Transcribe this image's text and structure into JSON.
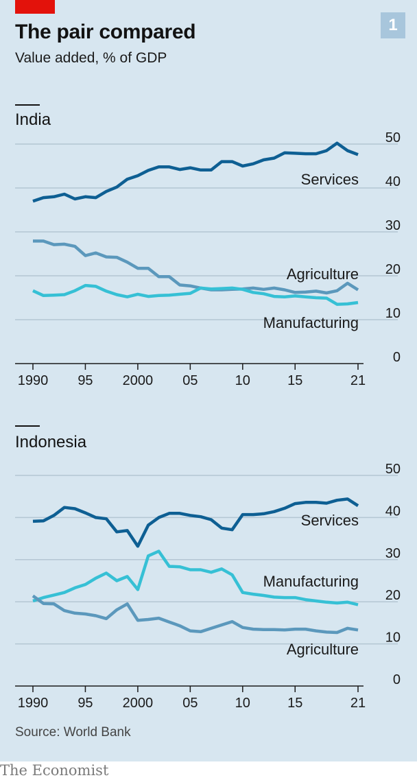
{
  "header": {
    "title": "The pair compared",
    "subtitle": "Value added, % of GDP",
    "badge": "1"
  },
  "footer": {
    "source": "Source: World Bank",
    "brand": "The Economist"
  },
  "colors": {
    "services": "#0e5f93",
    "agriculture": "#5b98bc",
    "manufacturing": "#36c0d5",
    "background": "#d7e6f0",
    "accent": "#e3120b"
  },
  "chart_data": [
    {
      "type": "line",
      "title": "India",
      "x": [
        1990,
        1991,
        1992,
        1993,
        1994,
        1995,
        1996,
        1997,
        1998,
        1999,
        2000,
        2001,
        2002,
        2003,
        2004,
        2005,
        2006,
        2007,
        2008,
        2009,
        2010,
        2011,
        2012,
        2013,
        2014,
        2015,
        2016,
        2017,
        2018,
        2019,
        2020,
        2021
      ],
      "xtick_labels": [
        "1990",
        "95",
        "2000",
        "05",
        "10",
        "15",
        "21"
      ],
      "xtick_values": [
        1990,
        1995,
        2000,
        2005,
        2010,
        2015,
        2021
      ],
      "ytick_values": [
        0,
        10,
        20,
        30,
        40,
        50
      ],
      "ylim": [
        0,
        50
      ],
      "series": [
        {
          "name": "Services",
          "key": "services",
          "values": [
            37,
            37.8,
            38,
            38.6,
            37.5,
            38,
            37.8,
            39.2,
            40.2,
            42,
            42.8,
            44,
            44.8,
            44.8,
            44.2,
            44.6,
            44.1,
            44.1,
            46,
            46,
            45,
            45.5,
            46.4,
            46.8,
            48,
            47.9,
            47.8,
            47.8,
            48.5,
            50.2,
            48.5,
            47.6
          ]
        },
        {
          "name": "Agriculture",
          "key": "agriculture",
          "values": [
            27.9,
            27.9,
            27.1,
            27.2,
            26.7,
            24.6,
            25.2,
            24.3,
            24.2,
            23.1,
            21.7,
            21.7,
            19.8,
            19.8,
            17.9,
            17.7,
            17.2,
            16.8,
            16.8,
            16.9,
            17,
            17.2,
            16.9,
            17.2,
            16.8,
            16.2,
            16.3,
            16.5,
            16.1,
            16.6,
            18.3,
            16.8
          ]
        },
        {
          "name": "Manufacturing",
          "key": "manufacturing",
          "values": [
            16.6,
            15.5,
            15.6,
            15.7,
            16.6,
            17.8,
            17.6,
            16.5,
            15.7,
            15.2,
            15.8,
            15.3,
            15.5,
            15.6,
            15.8,
            16,
            17.2,
            17,
            17.1,
            17.2,
            16.9,
            16.2,
            15.9,
            15.3,
            15.2,
            15.4,
            15.2,
            15,
            14.9,
            13.5,
            13.6,
            13.9
          ]
        }
      ]
    },
    {
      "type": "line",
      "title": "Indonesia",
      "x": [
        1990,
        1991,
        1992,
        1993,
        1994,
        1995,
        1996,
        1997,
        1998,
        1999,
        2000,
        2001,
        2002,
        2003,
        2004,
        2005,
        2006,
        2007,
        2008,
        2009,
        2010,
        2011,
        2012,
        2013,
        2014,
        2015,
        2016,
        2017,
        2018,
        2019,
        2020,
        2021
      ],
      "xtick_labels": [
        "1990",
        "95",
        "2000",
        "05",
        "10",
        "15",
        "21"
      ],
      "xtick_values": [
        1990,
        1995,
        2000,
        2005,
        2010,
        2015,
        2021
      ],
      "ytick_values": [
        0,
        10,
        20,
        30,
        40,
        50
      ],
      "ylim": [
        0,
        50
      ],
      "series": [
        {
          "name": "Services",
          "key": "services",
          "values": [
            39.1,
            39.2,
            40.5,
            42.4,
            42.1,
            41.1,
            40,
            39.7,
            36.6,
            36.9,
            33.2,
            38.2,
            40,
            41,
            41,
            40.5,
            40.2,
            39.5,
            37.5,
            37.1,
            40.7,
            40.7,
            40.9,
            41.4,
            42.2,
            43.3,
            43.6,
            43.6,
            43.4,
            44.1,
            44.4,
            42.8
          ]
        },
        {
          "name": "Manufacturing",
          "key": "manufacturing",
          "values": [
            20.2,
            21,
            21.6,
            22.2,
            23.3,
            24.1,
            25.6,
            26.8,
            25,
            26,
            22.9,
            30.9,
            32,
            28.4,
            28.3,
            27.6,
            27.6,
            27,
            27.8,
            26.4,
            22.2,
            21.8,
            21.5,
            21.1,
            21,
            21,
            20.5,
            20.2,
            19.9,
            19.7,
            19.9,
            19.3
          ]
        },
        {
          "name": "Agriculture",
          "key": "agriculture",
          "values": [
            21.4,
            19.6,
            19.5,
            17.9,
            17.3,
            17.1,
            16.7,
            16,
            18.1,
            19.5,
            15.6,
            15.8,
            16.1,
            15.2,
            14.3,
            13.1,
            12.9,
            13.7,
            14.5,
            15.3,
            13.9,
            13.5,
            13.4,
            13.4,
            13.3,
            13.5,
            13.5,
            13.1,
            12.8,
            12.7,
            13.7,
            13.3
          ]
        }
      ]
    }
  ]
}
